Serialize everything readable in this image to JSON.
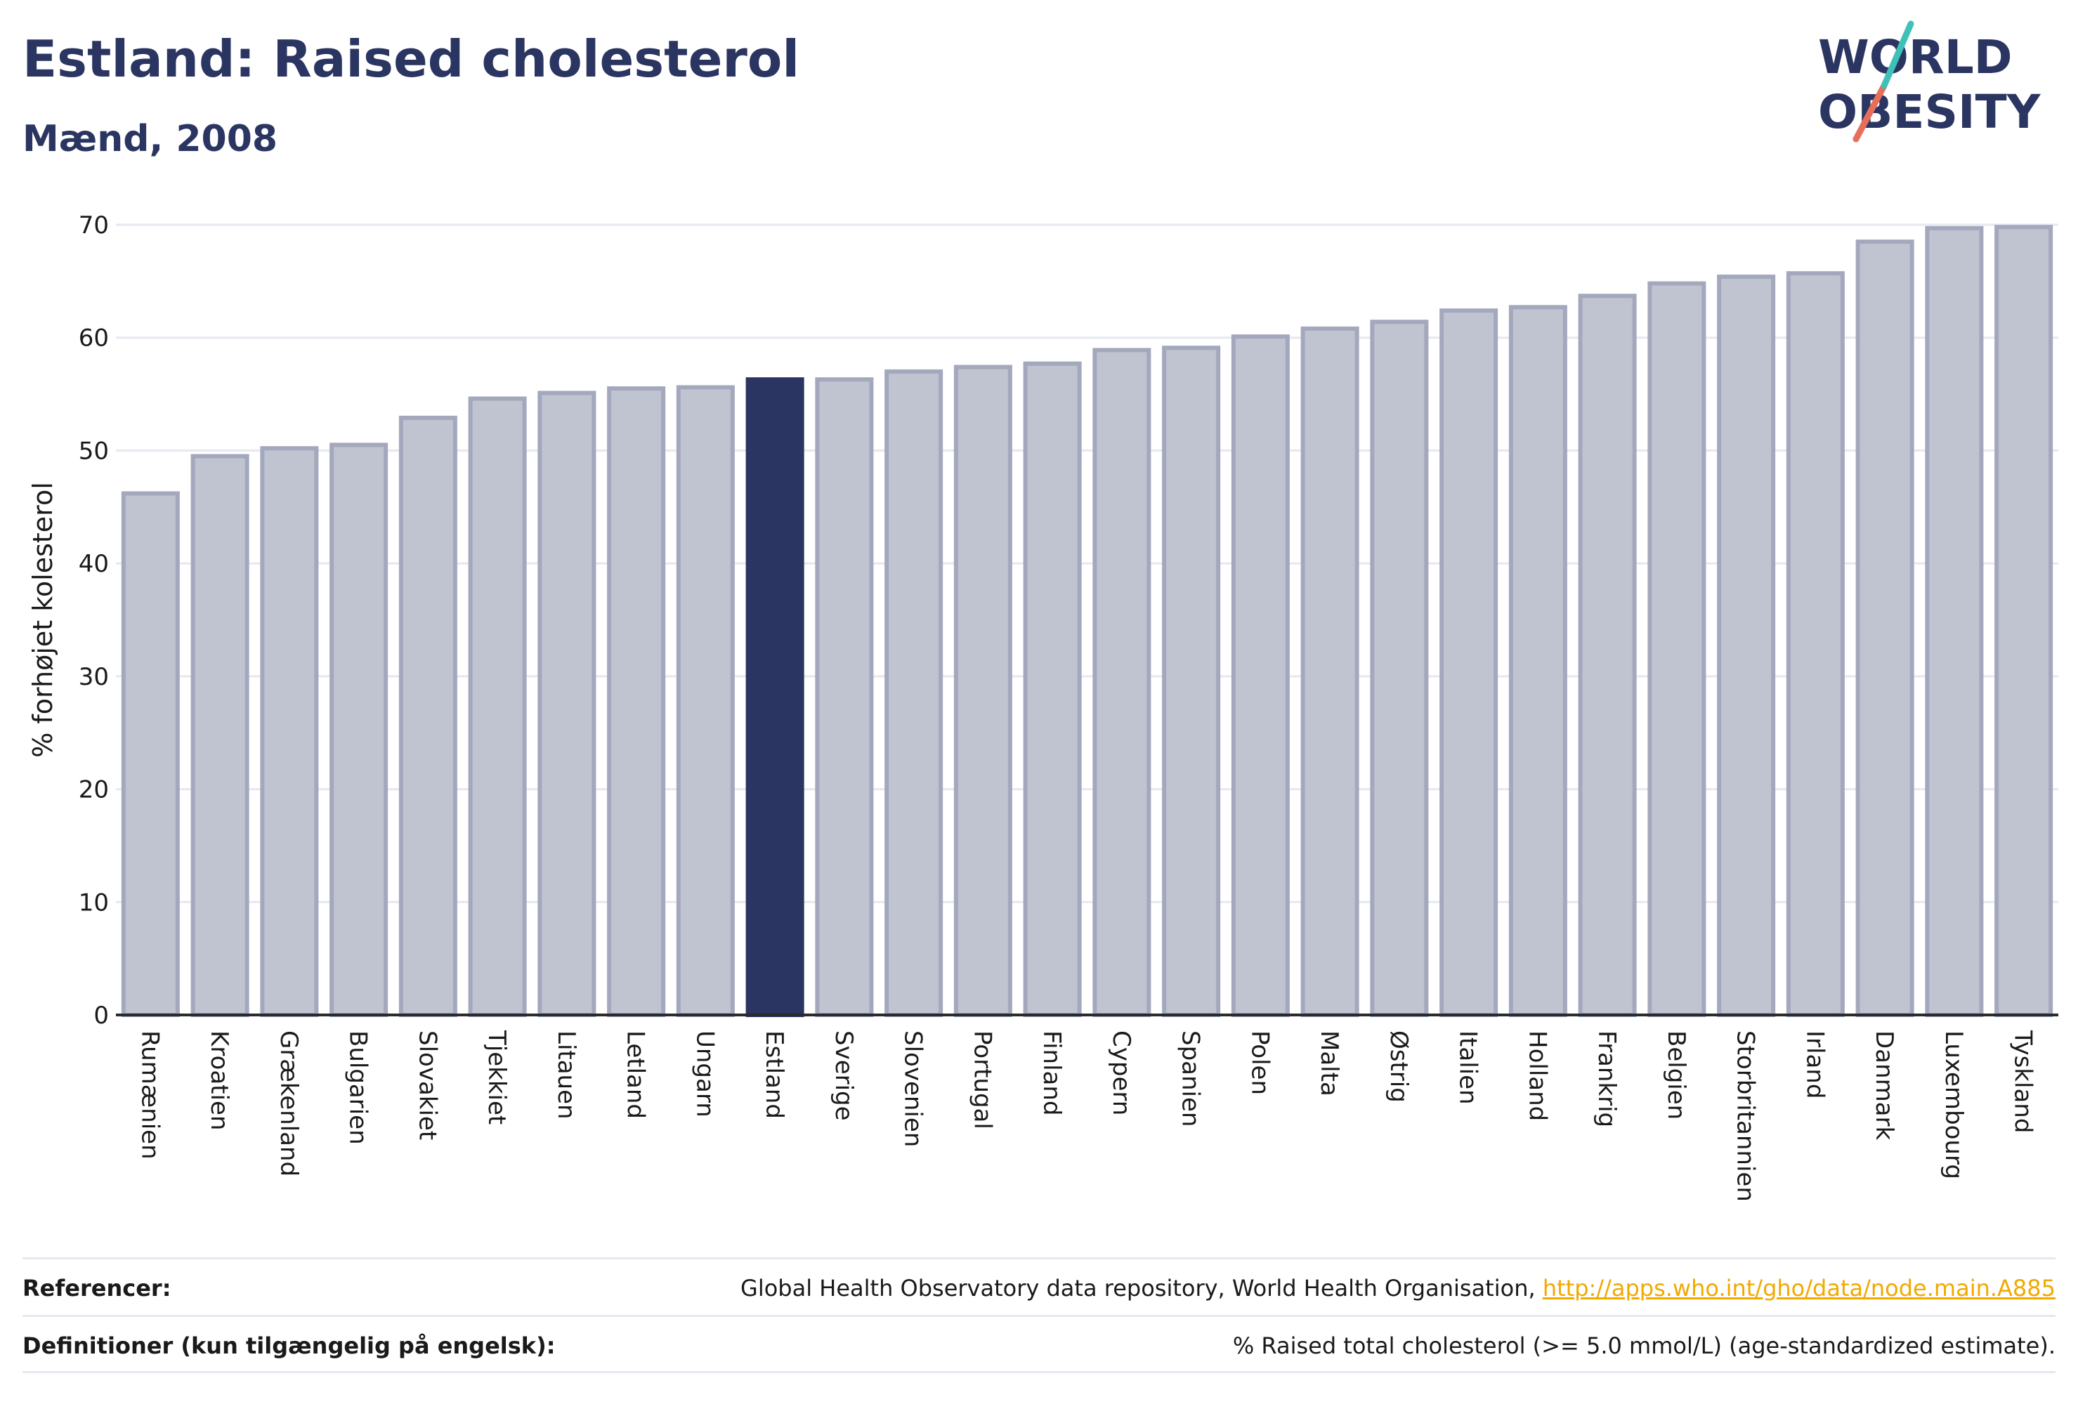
{
  "header": {
    "title": "Estland: Raised cholesterol",
    "subtitle": "Mænd, 2008"
  },
  "logo": {
    "line1": "WORLD",
    "line2": "OBESITY"
  },
  "chart_data": {
    "type": "bar",
    "categories": [
      "Rumænien",
      "Kroatien",
      "Grækenland",
      "Bulgarien",
      "Slovakiet",
      "Tjekkiet",
      "Litauen",
      "Letland",
      "Ungarn",
      "Estland",
      "Sverige",
      "Slovenien",
      "Portugal",
      "Finland",
      "Cypern",
      "Spanien",
      "Polen",
      "Malta",
      "Østrig",
      "Italien",
      "Holland",
      "Frankrig",
      "Belgien",
      "Storbritannien",
      "Irland",
      "Danmark",
      "Luxembourg",
      "Tyskland"
    ],
    "values": [
      46.2,
      49.5,
      50.2,
      50.5,
      52.9,
      54.6,
      55.1,
      55.5,
      55.6,
      56.3,
      56.3,
      57.0,
      57.4,
      57.7,
      58.9,
      59.1,
      60.1,
      60.8,
      61.4,
      62.4,
      62.7,
      63.7,
      64.8,
      65.4,
      65.7,
      68.5,
      69.7,
      69.8
    ],
    "highlight": "Estland",
    "ylabel": "% forhøjet kolesterol",
    "xlabel": "",
    "ylim": [
      0,
      70
    ],
    "yticks": [
      0,
      10,
      20,
      30,
      40,
      50,
      60,
      70
    ],
    "grid": true,
    "colors": {
      "bar": "#c0c3d0",
      "bar_border": "#a3a8bd",
      "highlight": "#2b3561",
      "grid": "#e6e8f0",
      "axis": "#2b2b2b"
    }
  },
  "footer": {
    "references_label": "Referencer:",
    "references_text": "Global Health Observatory data repository, World Health Organisation, ",
    "references_link": "http://apps.who.int/gho/data/node.main.A885",
    "definitions_label": "Definitioner (kun tilgængelig på engelsk):",
    "definitions_text": "% Raised total cholesterol (>= 5.0 mmol/L) (age-standardized estimate)."
  }
}
